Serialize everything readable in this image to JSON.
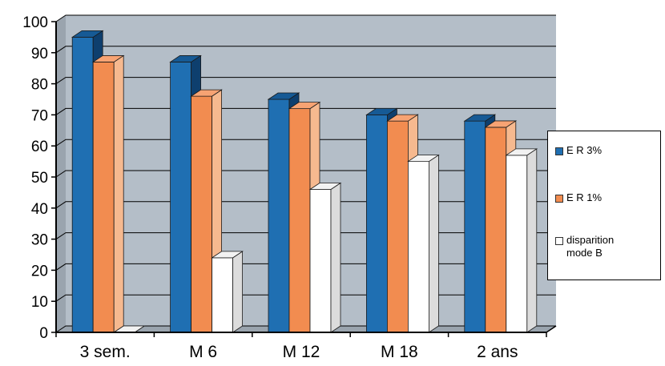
{
  "chart_data": {
    "type": "bar",
    "categories": [
      "3 sem.",
      "M 6",
      "M 12",
      "M 18",
      "2 ans"
    ],
    "series": [
      {
        "name": "E R 3%",
        "values": [
          95,
          87,
          75,
          70,
          68
        ]
      },
      {
        "name": "E R 1%",
        "values": [
          87,
          76,
          72,
          68,
          66
        ]
      },
      {
        "name": "disparition mode B",
        "values": [
          0,
          24,
          46,
          55,
          57
        ]
      }
    ],
    "title": "",
    "xlabel": "",
    "ylabel": "",
    "ylim": [
      0,
      100
    ],
    "yticks": [
      "0",
      "10",
      "20",
      "30",
      "40",
      "50",
      "60",
      "70",
      "80",
      "90",
      "100"
    ],
    "grid": true,
    "legend_position": "right",
    "colors": {
      "series": [
        "#1f6fb2",
        "#f28c50",
        "#ffffff"
      ],
      "series_side": [
        "#0e3f6e",
        "#f6b98f",
        "#dcdcdc"
      ],
      "series_top": [
        "#165a95",
        "#f7a373",
        "#f2f2f2"
      ],
      "plot_wall": "#b4bec8",
      "floor": "#9aa4ae",
      "gridline": "#000000"
    }
  }
}
